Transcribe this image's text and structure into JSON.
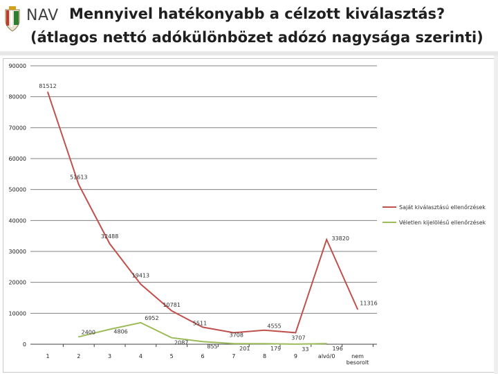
{
  "header": {
    "logo_name": "nav-crest-logo",
    "brand": "NAV",
    "title_line1": "Mennyivel hatékonyabb a célzott kiválasztás?",
    "title_line2": "(átlagos nettó adókülönbözet adózó nagysága szerinti)"
  },
  "colors": {
    "series1": "#c0504d",
    "series2": "#9bbb59",
    "grid": "#808080"
  },
  "chart_data": {
    "type": "line",
    "title": "",
    "xlabel": "",
    "ylabel": "",
    "ylim": [
      0,
      90000
    ],
    "yticks": [
      "0",
      "10000",
      "20000",
      "30000",
      "40000",
      "50000",
      "60000",
      "70000",
      "80000",
      "90000"
    ],
    "categories": [
      "1",
      "2",
      "3",
      "4",
      "5",
      "6",
      "7",
      "8",
      "9",
      "alvó/0",
      "nem besorolt"
    ],
    "grid": true,
    "legend_position": "right",
    "series": [
      {
        "name": "Saját kiválasztású ellenőrzések",
        "color": "#c0504d",
        "values": [
          81512,
          51613,
          32488,
          19413,
          10781,
          5511,
          3708,
          4555,
          3707,
          33820,
          11316
        ],
        "labels": [
          "81512",
          "51613",
          "32488",
          "19413",
          "10781",
          "5511",
          "3708",
          "4555",
          "3707",
          "33820",
          "11316"
        ]
      },
      {
        "name": "Véletlen kijelölésű ellenőrzések",
        "color": "#9bbb59",
        "values": [
          null,
          2400,
          4806,
          6952,
          2087,
          855,
          201,
          179,
          33,
          196,
          null
        ],
        "labels": [
          "",
          "2400",
          "4806",
          "6952",
          "2087",
          "855",
          "201",
          "179",
          "33",
          "196",
          ""
        ]
      }
    ]
  }
}
